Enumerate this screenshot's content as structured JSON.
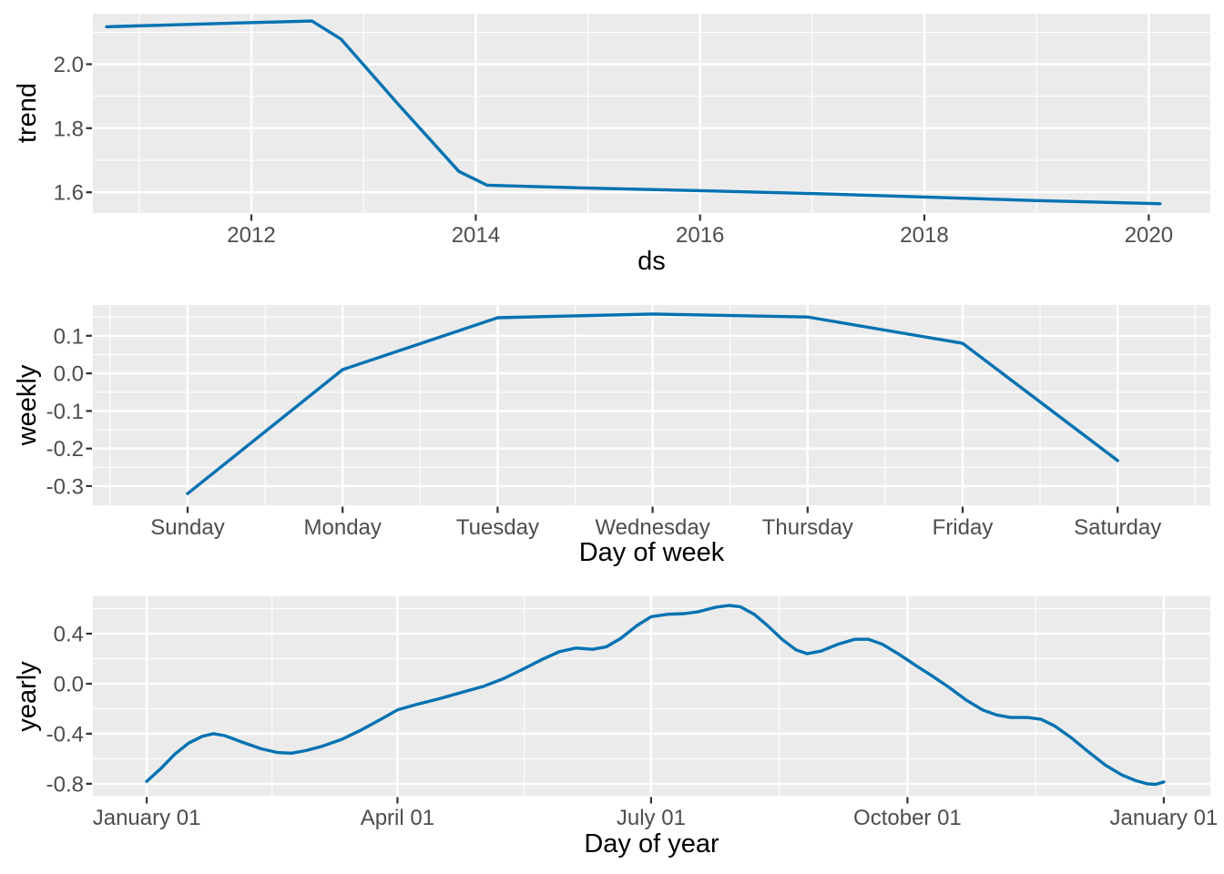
{
  "theme": {
    "figure_bg": "#FFFFFF",
    "panel_bg": "#EBEBEB",
    "grid_color": "#FFFFFF",
    "line_color": "#0072B2",
    "tick_label_color": "#4D4D4D",
    "tick_mark_color": "#333333",
    "axis_title_color": "#000000"
  },
  "chart_data": [
    {
      "type": "line",
      "name": "trend",
      "xlabel": "ds",
      "ylabel": "trend",
      "legend": "none",
      "grid": "on",
      "x_domain": [
        2010.587,
        2020.549
      ],
      "y_domain": [
        1.535,
        2.158
      ],
      "x_ticks": [
        {
          "value": 2012,
          "label": "2012"
        },
        {
          "value": 2014,
          "label": "2014"
        },
        {
          "value": 2016,
          "label": "2016"
        },
        {
          "value": 2018,
          "label": "2018"
        },
        {
          "value": 2020,
          "label": "2020"
        }
      ],
      "x_minor": [
        2011,
        2013,
        2015,
        2017,
        2019
      ],
      "y_ticks": [
        {
          "value": 1.6,
          "label": "1.6"
        },
        {
          "value": 1.8,
          "label": "1.8"
        },
        {
          "value": 2.0,
          "label": "2.0"
        }
      ],
      "y_minor": [
        1.7,
        1.9,
        2.1
      ],
      "points": [
        [
          2010.71,
          2.117
        ],
        [
          2011.3,
          2.123
        ],
        [
          2011.9,
          2.129
        ],
        [
          2012.54,
          2.135
        ],
        [
          2012.8,
          2.078
        ],
        [
          2013.3,
          1.878
        ],
        [
          2013.85,
          1.665
        ],
        [
          2014.1,
          1.622
        ],
        [
          2015.0,
          1.613
        ],
        [
          2016.0,
          1.605
        ],
        [
          2017.0,
          1.596
        ],
        [
          2018.0,
          1.585
        ],
        [
          2019.0,
          1.574
        ],
        [
          2020.1,
          1.564
        ]
      ]
    },
    {
      "type": "line",
      "name": "weekly",
      "xlabel": "Day of week",
      "ylabel": "weekly",
      "legend": "none",
      "grid": "on",
      "x_domain": [
        -0.611,
        6.598
      ],
      "y_domain": [
        -0.351,
        0.182
      ],
      "x_ticks": [
        {
          "value": 0,
          "label": "Sunday"
        },
        {
          "value": 1,
          "label": "Monday"
        },
        {
          "value": 2,
          "label": "Tuesday"
        },
        {
          "value": 3,
          "label": "Wednesday"
        },
        {
          "value": 4,
          "label": "Thursday"
        },
        {
          "value": 5,
          "label": "Friday"
        },
        {
          "value": 6,
          "label": "Saturday"
        }
      ],
      "x_minor": [
        -0.5,
        0.5,
        1.5,
        2.5,
        3.5,
        4.5,
        5.5,
        6.5
      ],
      "y_ticks": [
        {
          "value": 0.1,
          "label": "0.1"
        },
        {
          "value": 0.0,
          "label": "0.0"
        },
        {
          "value": -0.1,
          "label": "-0.1"
        },
        {
          "value": -0.2,
          "label": "-0.2"
        },
        {
          "value": -0.3,
          "label": "-0.3"
        }
      ],
      "y_minor": [
        0.15,
        0.05,
        -0.05,
        -0.15,
        -0.25
      ],
      "points": [
        [
          0,
          -0.32
        ],
        [
          1,
          0.01
        ],
        [
          2,
          0.148
        ],
        [
          3,
          0.158
        ],
        [
          4,
          0.15
        ],
        [
          5,
          0.08
        ],
        [
          6,
          -0.232
        ]
      ]
    },
    {
      "type": "line",
      "name": "yearly",
      "xlabel": "Day of year",
      "ylabel": "yearly",
      "legend": "none",
      "grid": "on",
      "x_domain": [
        -18.3,
        382.7
      ],
      "y_domain": [
        -0.895,
        0.698
      ],
      "x_ticks": [
        {
          "value": 1,
          "label": "January 01"
        },
        {
          "value": 91,
          "label": "April 01"
        },
        {
          "value": 182,
          "label": "July 01"
        },
        {
          "value": 274,
          "label": "October 01"
        },
        {
          "value": 366,
          "label": "January 01"
        }
      ],
      "x_minor": [
        46,
        136.5,
        228,
        320
      ],
      "y_ticks": [
        {
          "value": 0.4,
          "label": "0.4"
        },
        {
          "value": 0.0,
          "label": "0.0"
        },
        {
          "value": -0.4,
          "label": "-0.4"
        },
        {
          "value": -0.8,
          "label": "-0.8"
        }
      ],
      "y_minor": [
        0.6,
        0.2,
        -0.2,
        -0.6
      ],
      "points": [
        [
          1,
          -0.78
        ],
        [
          6,
          -0.68
        ],
        [
          11,
          -0.565
        ],
        [
          16,
          -0.475
        ],
        [
          21,
          -0.42
        ],
        [
          25,
          -0.4
        ],
        [
          29,
          -0.415
        ],
        [
          35,
          -0.465
        ],
        [
          42,
          -0.52
        ],
        [
          48,
          -0.55
        ],
        [
          53,
          -0.555
        ],
        [
          58,
          -0.535
        ],
        [
          64,
          -0.5
        ],
        [
          71,
          -0.445
        ],
        [
          78,
          -0.37
        ],
        [
          85,
          -0.285
        ],
        [
          91,
          -0.21
        ],
        [
          98,
          -0.165
        ],
        [
          106,
          -0.12
        ],
        [
          114,
          -0.07
        ],
        [
          122,
          -0.02
        ],
        [
          129,
          0.04
        ],
        [
          136,
          0.115
        ],
        [
          143,
          0.195
        ],
        [
          149,
          0.255
        ],
        [
          155,
          0.285
        ],
        [
          161,
          0.275
        ],
        [
          166,
          0.295
        ],
        [
          171,
          0.36
        ],
        [
          177,
          0.465
        ],
        [
          182,
          0.535
        ],
        [
          188,
          0.555
        ],
        [
          194,
          0.56
        ],
        [
          199,
          0.575
        ],
        [
          205,
          0.61
        ],
        [
          210,
          0.625
        ],
        [
          214,
          0.615
        ],
        [
          219,
          0.555
        ],
        [
          224,
          0.46
        ],
        [
          229,
          0.355
        ],
        [
          234,
          0.27
        ],
        [
          238,
          0.24
        ],
        [
          243,
          0.26
        ],
        [
          249,
          0.315
        ],
        [
          255,
          0.355
        ],
        [
          260,
          0.355
        ],
        [
          265,
          0.315
        ],
        [
          271,
          0.235
        ],
        [
          277,
          0.145
        ],
        [
          283,
          0.06
        ],
        [
          289,
          -0.03
        ],
        [
          295,
          -0.13
        ],
        [
          301,
          -0.21
        ],
        [
          306,
          -0.25
        ],
        [
          311,
          -0.27
        ],
        [
          317,
          -0.27
        ],
        [
          322,
          -0.285
        ],
        [
          327,
          -0.34
        ],
        [
          333,
          -0.435
        ],
        [
          339,
          -0.545
        ],
        [
          345,
          -0.65
        ],
        [
          351,
          -0.73
        ],
        [
          356,
          -0.775
        ],
        [
          360,
          -0.8
        ],
        [
          363,
          -0.805
        ],
        [
          366,
          -0.785
        ]
      ]
    }
  ]
}
